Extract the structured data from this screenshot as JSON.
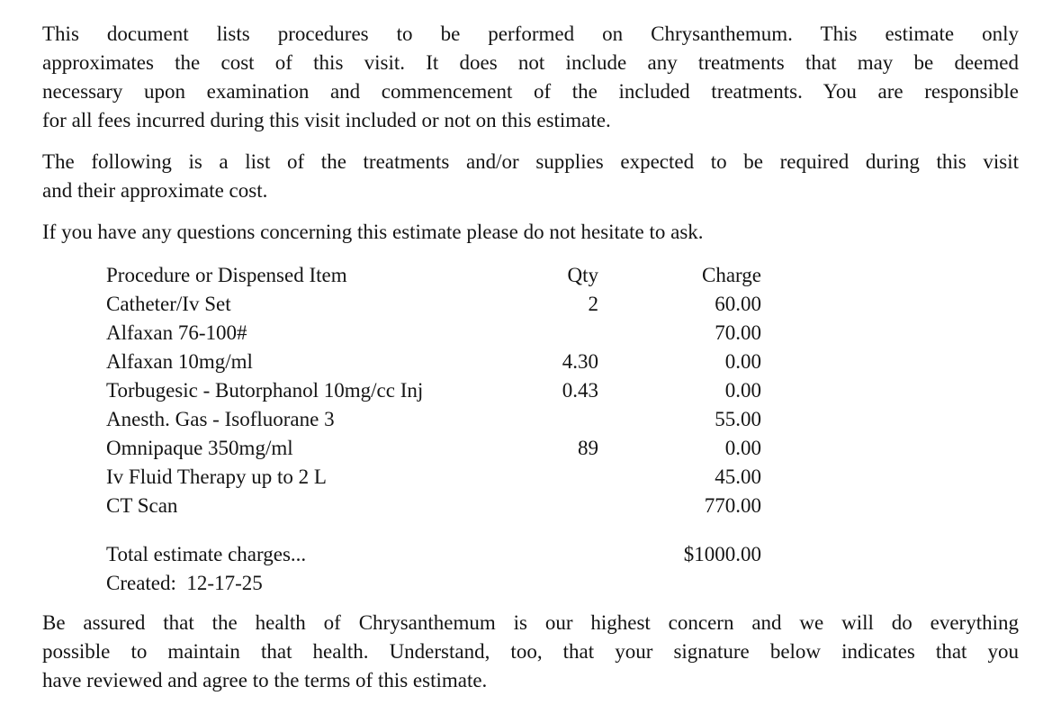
{
  "colors": {
    "background": "#ffffff",
    "text": "#141414"
  },
  "document": {
    "paragraphs": {
      "intro": {
        "lines": [
          "This document lists procedures to be performed on Chrysanthemum.  This estimate only",
          "approximates the cost of this visit.  It does not include any treatments that may be deemed",
          "necessary upon examination and commencement of the included treatments.  You are responsible",
          "for all fees incurred during this visit included or not on this estimate."
        ]
      },
      "following": {
        "lines": [
          "The following is a list of the treatments and/or supplies expected to be required during this visit",
          "and their approximate cost."
        ]
      },
      "questions": {
        "lines": [
          "If you have any questions concerning this estimate please do not hesitate to ask."
        ]
      },
      "closing": {
        "lines": [
          "Be assured that the health of Chrysanthemum is our highest concern and we will do everything",
          "possible to maintain that health.  Understand, too, that your signature below indicates that you",
          "have reviewed and agree to the terms of this estimate."
        ]
      }
    },
    "table": {
      "headers": {
        "item": "Procedure or Dispensed Item",
        "qty": "Qty",
        "charge": "Charge"
      },
      "rows": [
        {
          "item": "Catheter/Iv Set",
          "qty": "2",
          "charge": "60.00"
        },
        {
          "item": "Alfaxan 76-100#",
          "qty": "",
          "charge": "70.00"
        },
        {
          "item": "Alfaxan 10mg/ml",
          "qty": "4.30",
          "charge": "0.00"
        },
        {
          "item": "Torbugesic - Butorphanol 10mg/cc Inj",
          "qty": "0.43",
          "charge": "0.00"
        },
        {
          "item": "Anesth. Gas - Isofluorane 3",
          "qty": "",
          "charge": "55.00"
        },
        {
          "item": "Omnipaque 350mg/ml",
          "qty": "89",
          "charge": "0.00"
        },
        {
          "item": "Iv Fluid Therapy up to 2 L",
          "qty": "",
          "charge": "45.00"
        },
        {
          "item": "CT Scan",
          "qty": "",
          "charge": "770.00"
        }
      ],
      "total": {
        "label": "Total estimate charges...",
        "amount": "$1000.00"
      },
      "created": "Created:  12-17-25"
    }
  }
}
